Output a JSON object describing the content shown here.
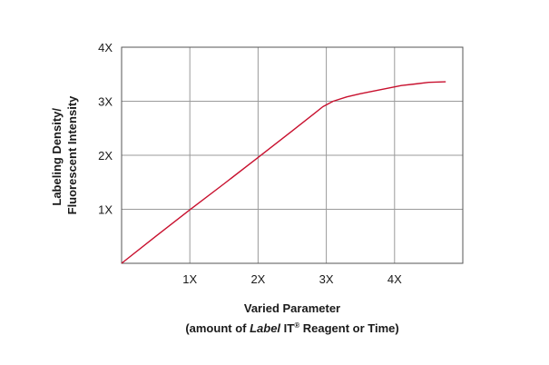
{
  "chart_data": {
    "type": "line",
    "title": "",
    "xlabel": "Varied Parameter",
    "xlabel_sub": {
      "prefix": "(amount of ",
      "italic": "Label",
      "brand": " IT",
      "mark": "®",
      "suffix": " Reagent or Time)"
    },
    "ylabel_lines": [
      "Labeling Density/",
      "Fluorescent Intensity"
    ],
    "xlim": [
      0,
      5
    ],
    "ylim": [
      0,
      4
    ],
    "x_ticks": [
      {
        "value": 1,
        "label": "1X"
      },
      {
        "value": 2,
        "label": "2X"
      },
      {
        "value": 3,
        "label": "3X"
      },
      {
        "value": 4,
        "label": "4X"
      }
    ],
    "y_ticks": [
      {
        "value": 1,
        "label": "1X"
      },
      {
        "value": 2,
        "label": "2X"
      },
      {
        "value": 3,
        "label": "3X"
      },
      {
        "value": 4,
        "label": "4X"
      }
    ],
    "grid": true,
    "legend": "none",
    "series": [
      {
        "color": "#c8102e",
        "x": [
          0,
          0.5,
          1,
          1.5,
          2,
          2.5,
          2.8,
          2.95,
          3.1,
          3.3,
          3.5,
          3.7,
          3.9,
          4.1,
          4.3,
          4.5,
          4.75
        ],
        "y": [
          0,
          0.5,
          0.99,
          1.47,
          1.96,
          2.45,
          2.75,
          2.9,
          3.0,
          3.08,
          3.14,
          3.19,
          3.24,
          3.29,
          3.32,
          3.35,
          3.36
        ]
      }
    ]
  }
}
